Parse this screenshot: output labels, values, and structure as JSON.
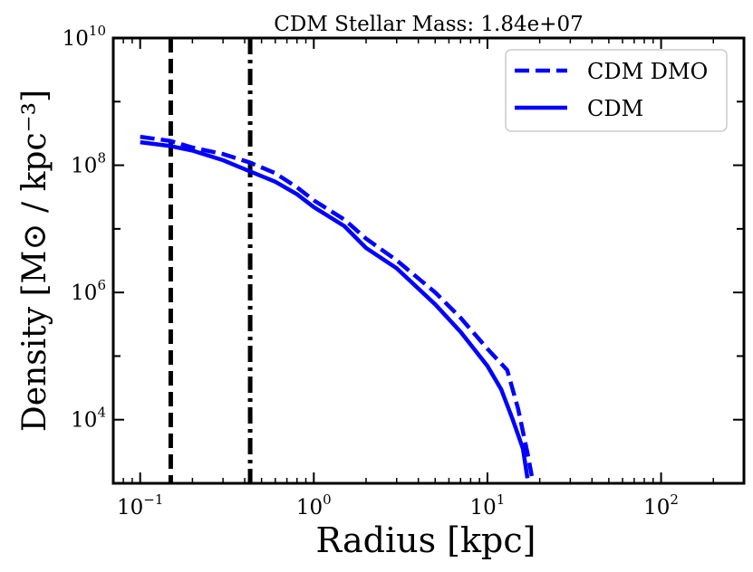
{
  "chart_data": {
    "type": "line",
    "title": "CDM Stellar Mass: 1.84e+07",
    "xlabel": "Radius [kpc]",
    "ylabel": "Density [M⊙ / kpc⁻³]",
    "xscale": "log",
    "yscale": "log",
    "xlim": [
      0.07,
      300
    ],
    "ylim": [
      1000,
      10000000000
    ],
    "xticks": [
      {
        "value": 0.1,
        "base": "10",
        "exp": "−1"
      },
      {
        "value": 1,
        "base": "10",
        "exp": "0"
      },
      {
        "value": 10,
        "base": "10",
        "exp": "1"
      },
      {
        "value": 100,
        "base": "10",
        "exp": "2"
      }
    ],
    "yticks": [
      {
        "value": 10000,
        "base": "10",
        "exp": "4"
      },
      {
        "value": 1000000,
        "base": "10",
        "exp": "6"
      },
      {
        "value": 100000000,
        "base": "10",
        "exp": "8"
      },
      {
        "value": 10000000000,
        "base": "10",
        "exp": "10"
      }
    ],
    "legend_position": "top-right",
    "series": [
      {
        "name": "CDM DMO",
        "style": "dashed",
        "color": "#0000ff",
        "x": [
          0.1,
          0.15,
          0.2,
          0.3,
          0.43,
          0.6,
          0.8,
          1.0,
          1.5,
          2.0,
          3.0,
          5.0,
          7.0,
          10.0,
          13.0,
          15.0,
          17.0,
          18.0
        ],
        "y": [
          280000000,
          240000000,
          190000000,
          150000000,
          110000000,
          75000000,
          45000000,
          28000000,
          14000000,
          7000000,
          3200000,
          1000000,
          400000,
          130000,
          60000,
          15000,
          3000,
          1300
        ]
      },
      {
        "name": "CDM",
        "style": "solid",
        "color": "#0000ff",
        "x": [
          0.1,
          0.15,
          0.2,
          0.3,
          0.43,
          0.6,
          0.8,
          1.0,
          1.5,
          2.0,
          3.0,
          5.0,
          7.0,
          10.0,
          12.0,
          14.0,
          16.0,
          17.0
        ],
        "y": [
          230000000,
          200000000,
          170000000,
          120000000,
          80000000,
          55000000,
          35000000,
          22000000,
          11000000,
          5000000,
          2400000,
          650000,
          240000,
          70000,
          30000,
          10000,
          3500,
          1200
        ]
      }
    ],
    "vertical_lines": [
      {
        "x": 0.15,
        "style": "dashed",
        "color": "#000000"
      },
      {
        "x": 0.43,
        "style": "dashdot",
        "color": "#000000"
      }
    ]
  }
}
